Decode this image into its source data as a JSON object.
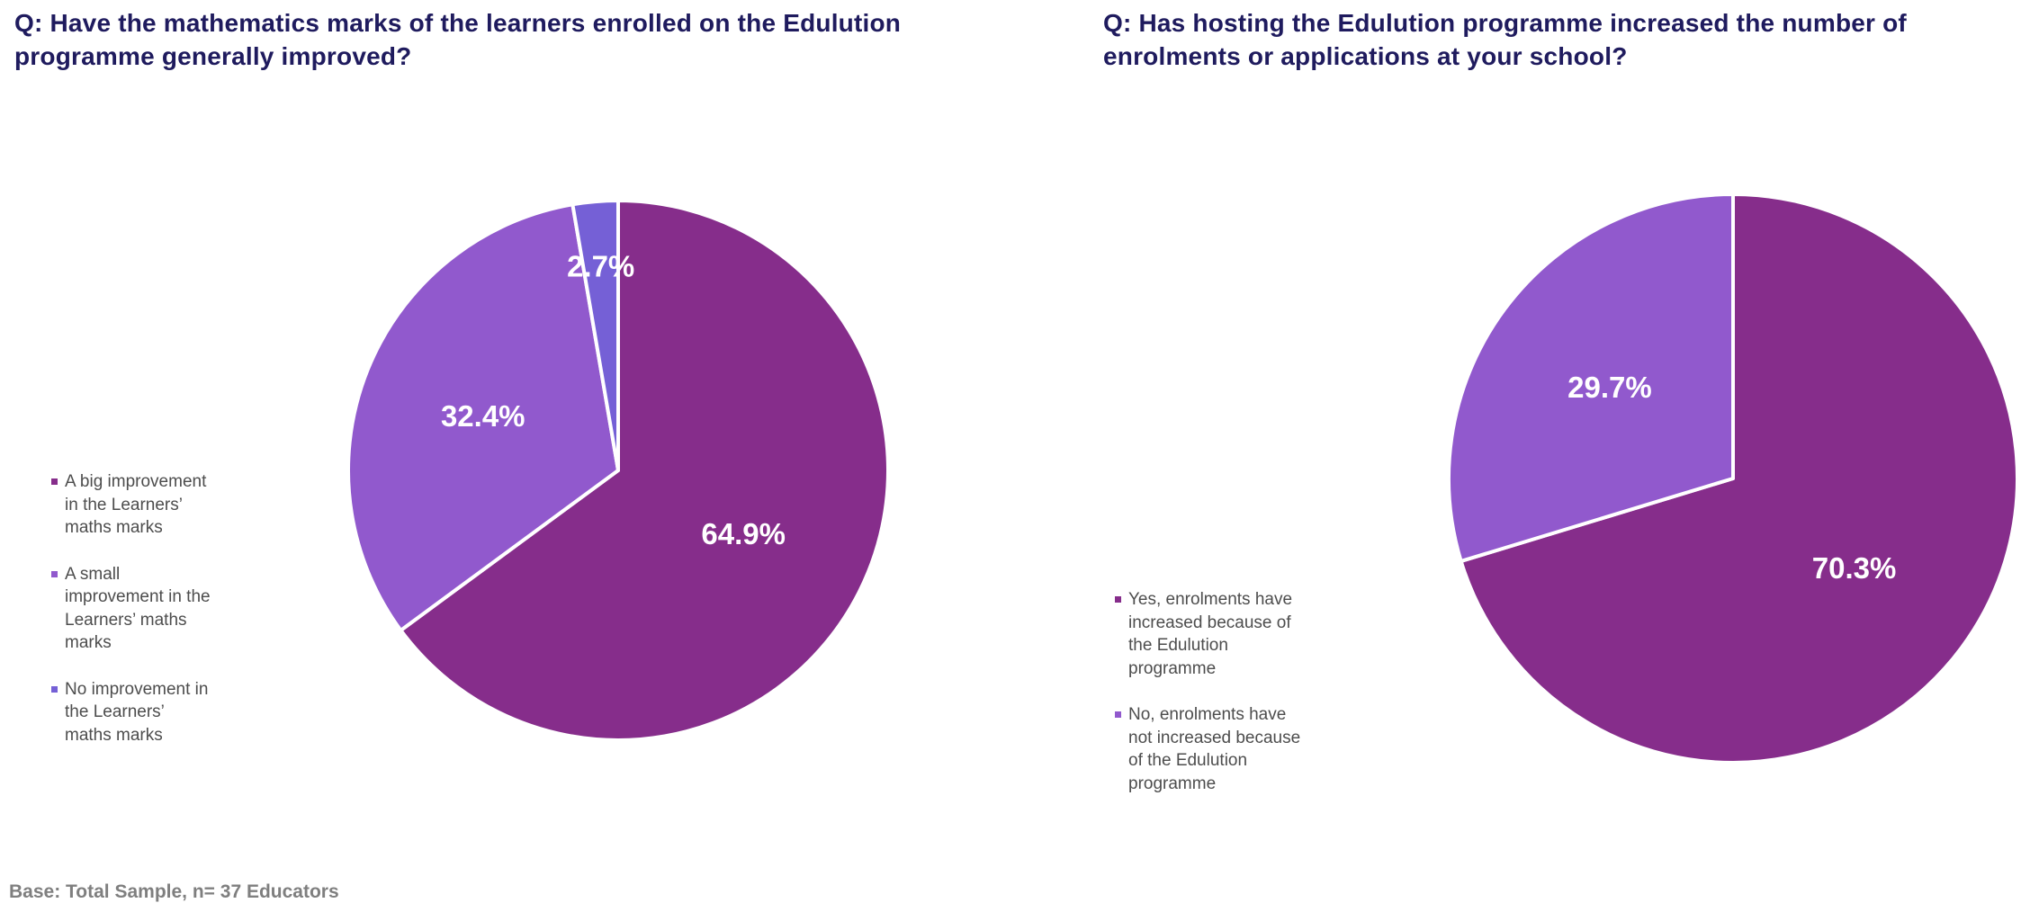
{
  "chart_data": [
    {
      "type": "pie",
      "title": "Q: Have the mathematics marks of the learners enrolled on the Edulution programme generally improved?",
      "categories": [
        "A big improvement in the Learners’ maths marks",
        "A small improvement in the Learners’ maths marks",
        "No improvement in the Learners’ maths marks"
      ],
      "values": [
        64.9,
        32.4,
        2.7
      ],
      "value_labels": [
        "64.9%",
        "32.4%",
        "2.7%"
      ],
      "colors": [
        "#862d8b",
        "#9159cd",
        "#7560d6"
      ],
      "legend_position": "left"
    },
    {
      "type": "pie",
      "title": "Q: Has hosting the Edulution programme increased the number of enrolments or applications at your school?",
      "categories": [
        "Yes, enrolments have increased because of the Edulution programme",
        "No, enrolments have not increased because of the Edulution programme"
      ],
      "values": [
        70.3,
        29.7
      ],
      "value_labels": [
        "70.3%",
        "29.7%"
      ],
      "colors": [
        "#862d8b",
        "#9159cd"
      ],
      "legend_position": "left"
    }
  ],
  "footnote": "Base: Total Sample, n= 37 Educators"
}
